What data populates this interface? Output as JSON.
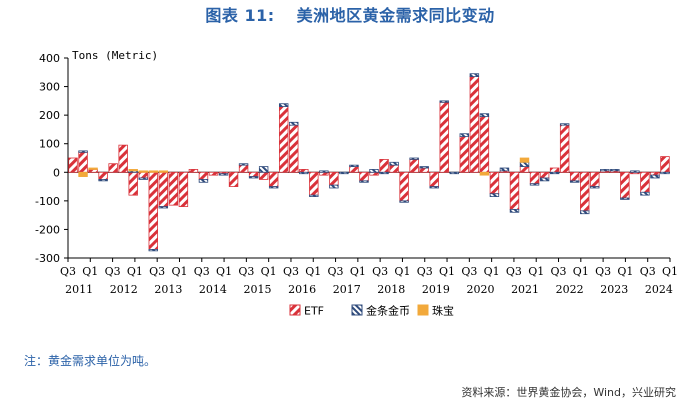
{
  "title_label": "图表",
  "title_number": "11:",
  "title_text": "美洲地区黄金需求同比变动",
  "note": "注：黄金需求单位为吨。",
  "source": "资料来源：世界黄金协会，Wind，兴业研究",
  "colors": {
    "etf": "#d9323a",
    "coins": "#2f4b7c",
    "jewelry": "#f2a93b",
    "axis": "#000000"
  },
  "chart_data": {
    "type": "bar",
    "stacked": true,
    "ylabel": "Tons (Metric)",
    "ylim": [
      -300,
      400
    ],
    "yticks": [
      -300,
      -200,
      -100,
      0,
      100,
      200,
      300,
      400
    ],
    "x_tick_labels": [
      "Q3",
      "Q1",
      "Q3",
      "Q1",
      "Q3",
      "Q1",
      "Q3",
      "Q1",
      "Q3",
      "Q1",
      "Q3",
      "Q1",
      "Q3",
      "Q1",
      "Q3",
      "Q1",
      "Q3",
      "Q1",
      "Q3",
      "Q1",
      "Q3",
      "Q1",
      "Q3",
      "Q1",
      "Q3",
      "Q1",
      "Q3",
      "Q1"
    ],
    "year_labels": [
      "2011",
      "2012",
      "2013",
      "2014",
      "2015",
      "2016",
      "2017",
      "2018",
      "2019",
      "2020",
      "2021",
      "2022",
      "2023",
      "2024"
    ],
    "legend": [
      "ETF",
      "金条金币",
      "珠宝"
    ],
    "legend_position": "bottom",
    "series": [
      {
        "name": "ETF",
        "pattern": "diagonal-hatch",
        "values": [
          50,
          70,
          10,
          -25,
          30,
          95,
          -80,
          -20,
          -270,
          -120,
          -115,
          -120,
          10,
          -25,
          -10,
          -5,
          -50,
          25,
          -15,
          -25,
          -50,
          230,
          165,
          10,
          -80,
          -10,
          -45,
          0,
          20,
          -30,
          -10,
          45,
          25,
          -100,
          45,
          15,
          -50,
          245,
          0,
          125,
          335,
          195,
          -75,
          5,
          -130,
          20,
          -40,
          -20,
          15,
          165,
          -30,
          -135,
          -50,
          5,
          5,
          -90,
          -5,
          -70,
          -10,
          55
        ]
      },
      {
        "name": "金条金币",
        "pattern": "backslash-hatch",
        "values": [
          0,
          5,
          0,
          -5,
          0,
          0,
          5,
          -5,
          -5,
          -5,
          0,
          0,
          0,
          -10,
          0,
          -5,
          0,
          5,
          -5,
          20,
          -5,
          10,
          10,
          -5,
          -5,
          5,
          -10,
          -5,
          5,
          -5,
          10,
          -5,
          10,
          -5,
          5,
          5,
          -5,
          5,
          -5,
          10,
          10,
          10,
          -10,
          10,
          -10,
          15,
          -5,
          -10,
          -5,
          5,
          -5,
          -10,
          -5,
          5,
          5,
          -5,
          5,
          -10,
          -10,
          -5
        ]
      },
      {
        "name": "珠宝",
        "pattern": "solid",
        "values": [
          0,
          -15,
          5,
          0,
          0,
          0,
          5,
          5,
          5,
          5,
          0,
          0,
          0,
          0,
          0,
          0,
          0,
          0,
          0,
          0,
          0,
          0,
          0,
          0,
          0,
          0,
          0,
          0,
          0,
          0,
          0,
          0,
          0,
          0,
          0,
          0,
          0,
          0,
          0,
          0,
          0,
          -10,
          0,
          0,
          0,
          15,
          0,
          0,
          0,
          0,
          0,
          0,
          0,
          0,
          0,
          0,
          0,
          0,
          0,
          0
        ]
      }
    ]
  }
}
